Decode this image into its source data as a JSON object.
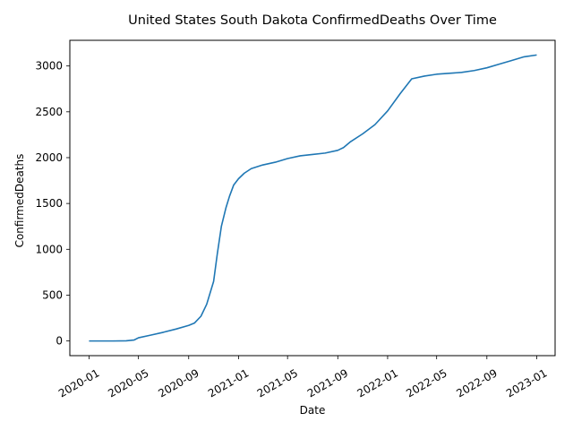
{
  "chart_data": {
    "type": "line",
    "title": "United States South Dakota ConfirmedDeaths Over Time",
    "xlabel": "Date",
    "ylabel": "ConfirmedDeaths",
    "grid": false,
    "legend": "none",
    "line_color": "#1f77b4",
    "xlim": [
      "2019-11-15",
      "2023-02-15"
    ],
    "ylim": [
      -160,
      3280
    ],
    "x_ticks": [
      "2020-01-01",
      "2020-05-01",
      "2020-09-01",
      "2021-01-01",
      "2021-05-01",
      "2021-09-01",
      "2022-01-01",
      "2022-05-01",
      "2022-09-01",
      "2023-01-01"
    ],
    "x_tick_labels": [
      "2020-01",
      "2020-05",
      "2020-09",
      "2021-01",
      "2021-05",
      "2021-09",
      "2022-01",
      "2022-05",
      "2022-09",
      "2023-01"
    ],
    "y_ticks": [
      0,
      500,
      1000,
      1500,
      2000,
      2500,
      3000
    ],
    "y_tick_labels": [
      "0",
      "500",
      "1000",
      "1500",
      "2000",
      "2500",
      "3000"
    ],
    "series": [
      {
        "x": [
          "2020-01-01",
          "2020-03-01",
          "2020-04-01",
          "2020-04-20",
          "2020-05-01",
          "2020-06-01",
          "2020-07-01",
          "2020-08-01",
          "2020-09-01",
          "2020-09-15",
          "2020-10-01",
          "2020-10-15",
          "2020-11-01",
          "2020-11-10",
          "2020-11-20",
          "2020-12-01",
          "2020-12-10",
          "2020-12-20",
          "2021-01-01",
          "2021-01-15",
          "2021-02-01",
          "2021-03-01",
          "2021-04-01",
          "2021-05-01",
          "2021-06-01",
          "2021-07-01",
          "2021-08-01",
          "2021-09-01",
          "2021-09-15",
          "2021-10-01",
          "2021-11-01",
          "2021-12-01",
          "2022-01-01",
          "2022-02-01",
          "2022-03-01",
          "2022-04-01",
          "2022-05-01",
          "2022-06-01",
          "2022-07-01",
          "2022-08-01",
          "2022-09-01",
          "2022-10-01",
          "2022-11-01",
          "2022-12-01",
          "2023-01-01"
        ],
        "y": [
          0,
          0,
          2,
          10,
          35,
          65,
          95,
          130,
          170,
          195,
          270,
          400,
          650,
          950,
          1250,
          1450,
          1580,
          1700,
          1770,
          1830,
          1880,
          1920,
          1950,
          1990,
          2020,
          2035,
          2050,
          2080,
          2110,
          2170,
          2260,
          2360,
          2510,
          2700,
          2860,
          2890,
          2910,
          2920,
          2930,
          2950,
          2980,
          3020,
          3060,
          3100,
          3120
        ]
      }
    ]
  }
}
